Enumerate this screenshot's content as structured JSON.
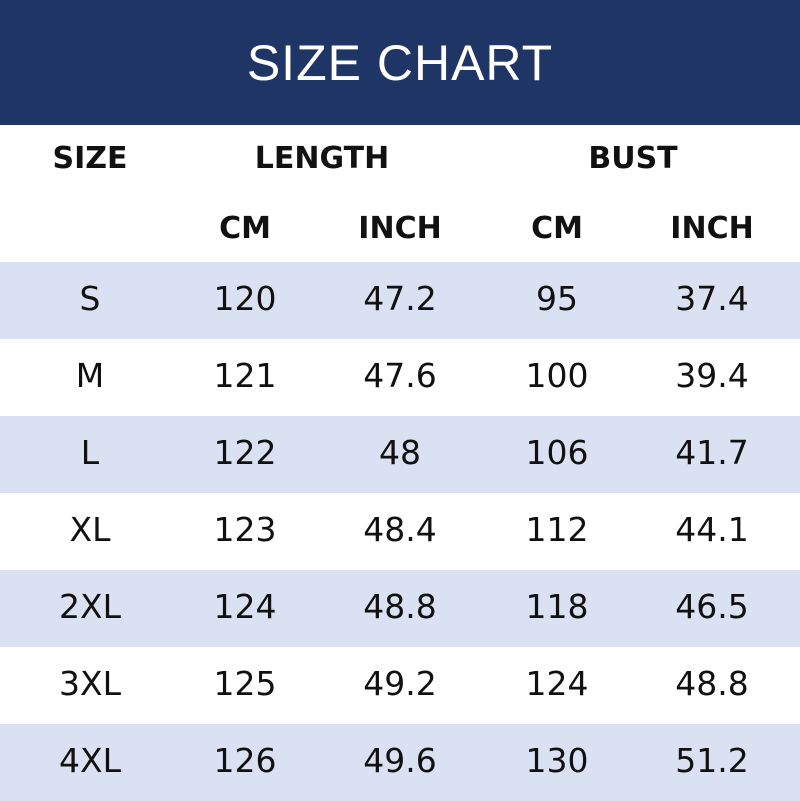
{
  "title": "SIZE CHART",
  "headers": {
    "size": "SIZE",
    "length": "LENGTH",
    "bust": "BUST",
    "sub": [
      "CM",
      "INCH",
      "CM",
      "INCH"
    ]
  },
  "colors": {
    "header_bg": "#1f3566",
    "stripe": "#d9e1f2"
  },
  "rows": [
    [
      "S",
      "120",
      "47.2",
      "95",
      "37.4"
    ],
    [
      "M",
      "121",
      "47.6",
      "100",
      "39.4"
    ],
    [
      "L",
      "122",
      "48",
      "106",
      "41.7"
    ],
    [
      "XL",
      "123",
      "48.4",
      "112",
      "44.1"
    ],
    [
      "2XL",
      "124",
      "48.8",
      "118",
      "46.5"
    ],
    [
      "3XL",
      "125",
      "49.2",
      "124",
      "48.8"
    ],
    [
      "4XL",
      "126",
      "49.6",
      "130",
      "51.2"
    ]
  ]
}
